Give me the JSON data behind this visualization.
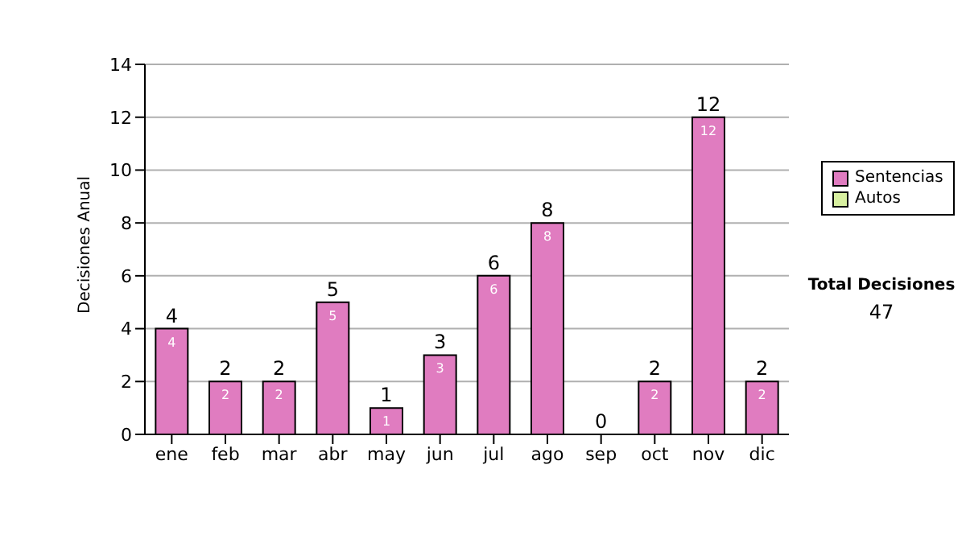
{
  "chart_data": {
    "type": "bar",
    "ylabel": "Decisiones Anual",
    "categories": [
      "ene",
      "feb",
      "mar",
      "abr",
      "may",
      "jun",
      "jul",
      "ago",
      "sep",
      "oct",
      "nov",
      "dic"
    ],
    "series": [
      {
        "name": "Sentencias",
        "color": "#e07cc0",
        "values": [
          4,
          2,
          2,
          5,
          1,
          3,
          6,
          8,
          0,
          2,
          12,
          2
        ],
        "value_labels": [
          "4",
          "2",
          "2",
          "5",
          "1",
          "3",
          "6",
          "8",
          null,
          "2",
          "12",
          "2"
        ]
      },
      {
        "name": "Autos",
        "color": "#d8f0a0",
        "values": [
          0,
          0,
          0,
          0,
          0,
          0,
          0,
          0,
          0,
          0,
          0,
          0
        ]
      }
    ],
    "stacked": true,
    "ylim": [
      0,
      14
    ],
    "yticks": [
      0,
      2,
      4,
      6,
      8,
      10,
      12,
      14
    ],
    "grid": "y",
    "legend": "right",
    "totals": [
      "4",
      "2",
      "2",
      "5",
      "1",
      "3",
      "6",
      "8",
      "0",
      "2",
      "12",
      "2"
    ],
    "annotations": [
      "Total Decisiones",
      "47"
    ]
  }
}
